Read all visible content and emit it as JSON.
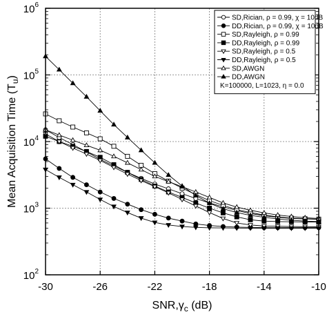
{
  "chart_data": {
    "type": "line",
    "xlabel": "SNR,γ",
    "xlabel_sub": "c",
    "xlabel_suffix": " (dB)",
    "ylabel": "Mean Acquisition Time (T",
    "ylabel_sub": "u",
    "ylabel_suffix": ")",
    "x_scale": "linear",
    "y_scale": "log",
    "xlim": [
      -30,
      -10
    ],
    "ylim": [
      100,
      1000000
    ],
    "grid": true,
    "legend_position": "top-right",
    "x_ticks": [
      {
        "value": -30,
        "label": "-30"
      },
      {
        "value": -26,
        "label": "-26"
      },
      {
        "value": -22,
        "label": "-22"
      },
      {
        "value": -18,
        "label": "-18"
      },
      {
        "value": -14,
        "label": "-14"
      },
      {
        "value": -10,
        "label": "-10"
      }
    ],
    "y_ticks": [
      {
        "value": 100,
        "base": "10",
        "exp": "2"
      },
      {
        "value": 1000,
        "base": "10",
        "exp": "3"
      },
      {
        "value": 10000,
        "base": "10",
        "exp": "4"
      },
      {
        "value": 100000,
        "base": "10",
        "exp": "5"
      },
      {
        "value": 1000000,
        "base": "10",
        "exp": "6"
      }
    ],
    "legend_note": "K=100000, L=1023, η = 0.0",
    "series": [
      {
        "name": "SD,Rician, ρ = 0.99, χ = 10dB",
        "marker": "circle-open",
        "x": [
          -30,
          -29,
          -28,
          -27,
          -26,
          -25,
          -24,
          -23,
          -22,
          -21,
          -20,
          -19,
          -18,
          -17,
          -16,
          -15,
          -14,
          -13,
          -12,
          -11,
          -10
        ],
        "y": [
          15000,
          11500,
          9000,
          7000,
          5400,
          4300,
          3450,
          2800,
          2300,
          1950,
          1650,
          1400,
          1200,
          1050,
          920,
          830,
          770,
          730,
          700,
          690,
          680
        ]
      },
      {
        "name": "DD,Rician, ρ = 0.99, χ = 10dB",
        "marker": "circle-filled",
        "x": [
          -30,
          -29,
          -28,
          -27,
          -26,
          -25,
          -24,
          -23,
          -22,
          -21,
          -20,
          -19,
          -18,
          -17,
          -16,
          -15,
          -14,
          -13,
          -12,
          -11,
          -10
        ],
        "y": [
          5500,
          3950,
          2900,
          2250,
          1750,
          1400,
          1150,
          950,
          810,
          710,
          640,
          580,
          550,
          530,
          520,
          515,
          510,
          510,
          510,
          510,
          510
        ]
      },
      {
        "name": "SD,Rayleigh, ρ = 0.99",
        "marker": "square-open",
        "x": [
          -30,
          -29,
          -28,
          -27,
          -26,
          -25,
          -24,
          -23,
          -22,
          -21,
          -20,
          -19,
          -18,
          -17,
          -16,
          -15,
          -14,
          -13,
          -12,
          -11,
          -10
        ],
        "y": [
          26000,
          20500,
          16500,
          13500,
          11000,
          8500,
          6000,
          4400,
          3300,
          2550,
          2000,
          1600,
          1300,
          1100,
          950,
          860,
          790,
          740,
          710,
          695,
          685
        ]
      },
      {
        "name": "DD,Rayleigh, ρ = 0.99",
        "marker": "square-filled",
        "x": [
          -30,
          -29,
          -28,
          -27,
          -26,
          -25,
          -24,
          -23,
          -22,
          -21,
          -20,
          -19,
          -18,
          -17,
          -16,
          -15,
          -14,
          -13,
          -12,
          -11,
          -10
        ],
        "y": [
          12000,
          10000,
          8500,
          7100,
          5800,
          4500,
          3450,
          2700,
          2150,
          1750,
          1450,
          1200,
          1000,
          850,
          740,
          670,
          640,
          630,
          625,
          622,
          620
        ]
      },
      {
        "name": "SD,Rayleigh, ρ = 0.5",
        "marker": "triangle-down-open",
        "x": [
          -30,
          -29,
          -28,
          -27,
          -26,
          -25,
          -24,
          -23,
          -22,
          -21,
          -20,
          -19,
          -18,
          -17,
          -16,
          -15,
          -14,
          -13,
          -12,
          -11,
          -10
        ],
        "y": [
          13000,
          10000,
          8000,
          6500,
          5200,
          4100,
          3250,
          2600,
          2100,
          1700,
          1350,
          1080,
          860,
          700,
          600,
          560,
          540,
          535,
          530,
          528,
          525
        ]
      },
      {
        "name": "DD,Rayleigh, ρ = 0.5",
        "marker": "triangle-down-filled",
        "x": [
          -30,
          -29,
          -28,
          -27,
          -26,
          -25,
          -24,
          -23,
          -22,
          -21,
          -20,
          -19,
          -18,
          -17,
          -16,
          -15,
          -14,
          -13,
          -12,
          -11,
          -10
        ],
        "y": [
          3800,
          2900,
          2250,
          1750,
          1350,
          1060,
          860,
          710,
          610,
          560,
          530,
          515,
          508,
          505,
          503,
          502,
          501,
          501,
          500,
          500,
          500
        ]
      },
      {
        "name": "SD,AWGN",
        "marker": "triangle-up-open",
        "x": [
          -30,
          -29,
          -28,
          -27,
          -26,
          -25,
          -24,
          -23,
          -22,
          -21,
          -20,
          -19,
          -18,
          -17,
          -16,
          -15,
          -14,
          -13,
          -12,
          -11,
          -10
        ],
        "y": [
          15000,
          12500,
          10500,
          8800,
          7400,
          6000,
          4800,
          3800,
          3000,
          2500,
          2100,
          1750,
          1450,
          1200,
          1040,
          930,
          850,
          790,
          750,
          720,
          700
        ]
      },
      {
        "name": "DD,AWGN",
        "marker": "triangle-up-filled",
        "x": [
          -30,
          -29,
          -28,
          -27,
          -26,
          -25,
          -24,
          -23,
          -22,
          -21,
          -20,
          -19,
          -18,
          -17,
          -16,
          -15,
          -14,
          -13,
          -12,
          -11,
          -10
        ],
        "y": [
          190000,
          120000,
          75000,
          47000,
          29000,
          18000,
          11500,
          7400,
          4800,
          3150,
          2150,
          1550,
          1190,
          980,
          860,
          780,
          730,
          690,
          660,
          640,
          630
        ]
      }
    ]
  }
}
